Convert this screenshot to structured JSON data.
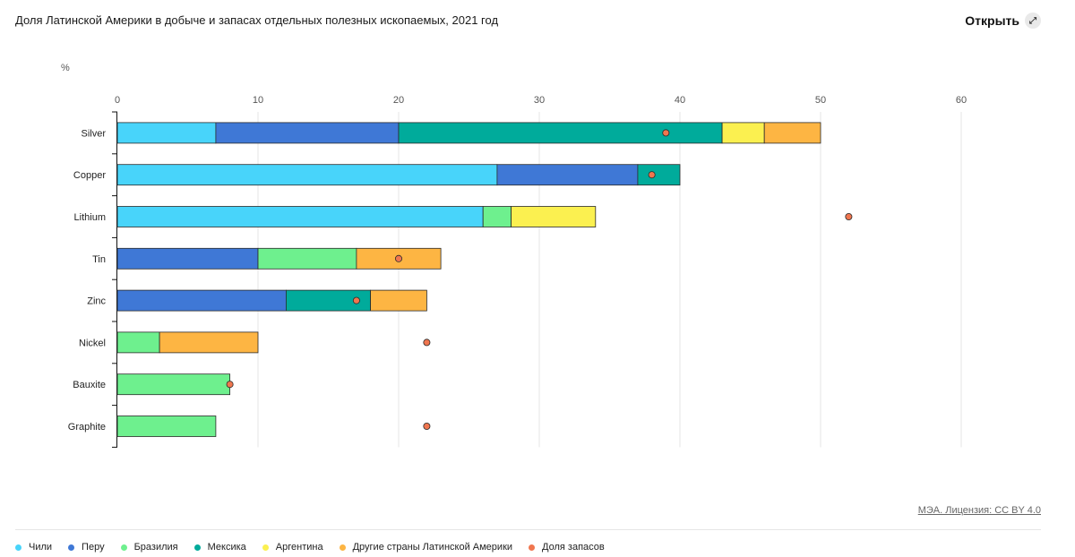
{
  "header": {
    "title": "Доля Латинской Америки в добыче и запасах отдельных полезных ископаемых, 2021 год",
    "open_label": "Открыть",
    "open_icon": "expand-icon"
  },
  "footer": {
    "source": "МЭА. Лицензия: CC BY 4.0"
  },
  "colors": {
    "Чили": "#48d4fa",
    "Перу": "#3f78d6",
    "Бразилия": "#6ef08e",
    "Мексика": "#00ab9b",
    "Аргентина": "#fbf050",
    "Другие страны Латинской Америки": "#fdb543",
    "Доля запасов": "#f0764f"
  },
  "chart_data": {
    "type": "bar",
    "orientation": "horizontal",
    "stacked": true,
    "title": "Доля Латинской Америки в добыче и запасах отдельных полезных ископаемых, 2021 год",
    "xlabel": "%",
    "xlim": [
      0,
      60
    ],
    "xticks": [
      0,
      10,
      20,
      30,
      40,
      50,
      60
    ],
    "grid": true,
    "legend_position": "bottom",
    "categories": [
      "Silver",
      "Copper",
      "Lithium",
      "Tin",
      "Zinc",
      "Nickel",
      "Bauxite",
      "Graphite"
    ],
    "series": [
      {
        "name": "Чили",
        "values": [
          7,
          27,
          26,
          0,
          0,
          0,
          0,
          0
        ]
      },
      {
        "name": "Перу",
        "values": [
          13,
          10,
          0,
          10,
          12,
          0,
          0,
          0
        ]
      },
      {
        "name": "Бразилия",
        "values": [
          0,
          0,
          2,
          7,
          0,
          3,
          8,
          7
        ]
      },
      {
        "name": "Мексика",
        "values": [
          23,
          3,
          0,
          0,
          6,
          0,
          0,
          0
        ]
      },
      {
        "name": "Аргентина",
        "values": [
          3,
          0,
          6,
          0,
          0,
          0,
          0,
          0
        ]
      },
      {
        "name": "Другие страны Латинской Америки",
        "values": [
          4,
          0,
          0,
          6,
          4,
          7,
          0,
          0
        ]
      }
    ],
    "markers": {
      "name": "Доля запасов",
      "values": [
        39,
        38,
        52,
        20,
        17,
        22,
        8,
        22
      ]
    }
  }
}
